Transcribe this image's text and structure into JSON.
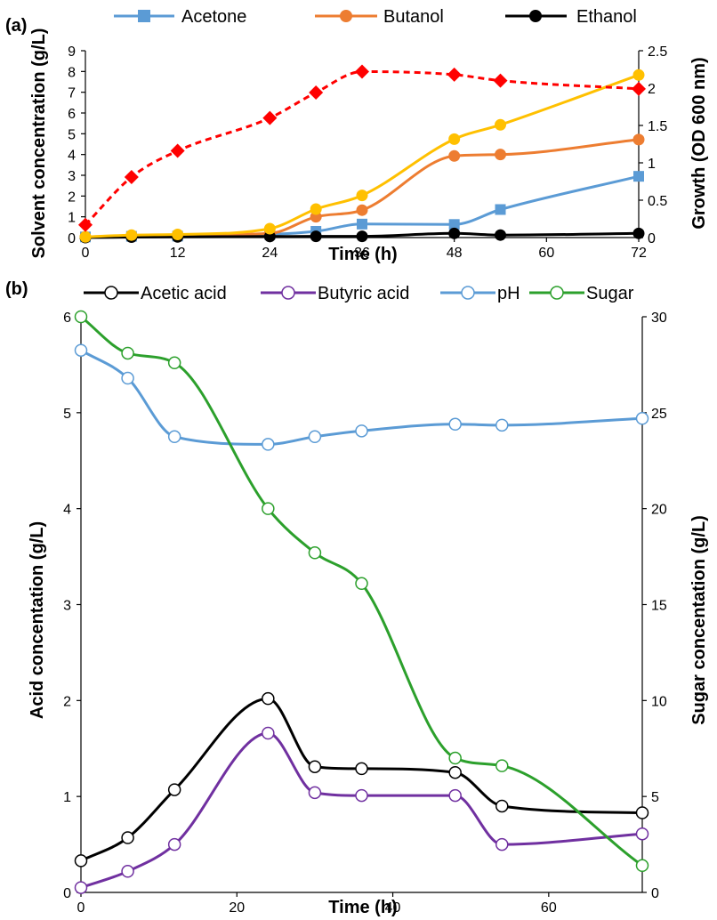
{
  "chart_data": [
    {
      "type": "line",
      "panel_label": "(a)",
      "xlabel": "Time (h)",
      "ylabel_left": "Solvent concentration (g/L)",
      "ylabel_right": "Growth (OD 600 nm)",
      "xlim": [
        0,
        72
      ],
      "x_ticks": [
        0,
        12,
        24,
        36,
        48,
        60,
        72
      ],
      "ylim_left": [
        0,
        9
      ],
      "y_ticks_left": [
        0,
        1,
        2,
        3,
        4,
        5,
        6,
        7,
        8,
        9
      ],
      "ylim_right": [
        0,
        2.5
      ],
      "y_ticks_right": [
        0,
        0.5,
        1,
        1.5,
        2,
        2.5
      ],
      "y_tick_labels_right": [
        "0",
        "0.5",
        "1",
        "1.5",
        "2",
        "2.5"
      ],
      "grid": false,
      "legend_position": "top",
      "series": [
        {
          "name": "Acetone",
          "axis": "left",
          "color": "#5B9BD5",
          "marker": "square",
          "dashed": false,
          "x": [
            0,
            6,
            12,
            24,
            30,
            36,
            48,
            54,
            72
          ],
          "y": [
            0.03,
            0.06,
            0.07,
            0.15,
            0.3,
            0.65,
            0.63,
            1.35,
            2.95
          ]
        },
        {
          "name": "Butanol",
          "axis": "left",
          "color": "#ED7D31",
          "marker": "circle",
          "dashed": false,
          "x": [
            0,
            6,
            12,
            24,
            30,
            36,
            48,
            54,
            72
          ],
          "y": [
            0.03,
            0.1,
            0.12,
            0.2,
            1.0,
            1.32,
            3.93,
            4.0,
            4.72
          ]
        },
        {
          "name": "Ethanol",
          "axis": "left",
          "color": "#000000",
          "marker": "circle",
          "dashed": false,
          "x": [
            0,
            6,
            12,
            24,
            30,
            36,
            48,
            54,
            72
          ],
          "y": [
            0.0,
            0.02,
            0.03,
            0.05,
            0.06,
            0.06,
            0.2,
            0.12,
            0.2
          ]
        },
        {
          "axis": "left",
          "color": "#FFC000",
          "marker": "circle",
          "dashed": false,
          "x": [
            0,
            6,
            12,
            24,
            30,
            36,
            48,
            54,
            72
          ],
          "y": [
            0.03,
            0.12,
            0.15,
            0.43,
            1.37,
            2.03,
            4.74,
            5.43,
            7.83
          ]
        },
        {
          "axis": "right",
          "color": "#FF0000",
          "marker": "diamond",
          "dashed": true,
          "x": [
            0,
            6,
            12,
            24,
            30,
            36,
            48,
            54,
            72
          ],
          "y": [
            0.17,
            0.81,
            1.16,
            1.6,
            1.94,
            2.22,
            2.18,
            2.1,
            1.99
          ]
        }
      ]
    },
    {
      "type": "line",
      "panel_label": "(b)",
      "xlabel": "Time (h)",
      "ylabel_left": "Acid concentation (g/L)",
      "ylabel_right": "Sugar concentation (g/L)",
      "xlim": [
        0,
        72
      ],
      "x_ticks": [
        0,
        20,
        40,
        60
      ],
      "ylim_left": [
        0,
        6
      ],
      "y_ticks_left": [
        0,
        1,
        2,
        3,
        4,
        5,
        6
      ],
      "ylim_right": [
        0,
        30
      ],
      "y_ticks_right": [
        0,
        5,
        10,
        15,
        20,
        25,
        30
      ],
      "y_tick_labels_right": [
        "0",
        "5",
        "10",
        "15",
        "20",
        "25",
        "30"
      ],
      "grid": false,
      "legend_position": "top",
      "series": [
        {
          "name": "Acetic acid",
          "axis": "left",
          "color": "#000000",
          "marker": "open-circle",
          "dashed": false,
          "x": [
            0,
            6,
            12,
            24,
            30,
            36,
            48,
            54,
            72
          ],
          "y": [
            0.33,
            0.57,
            1.07,
            2.02,
            1.31,
            1.29,
            1.25,
            0.9,
            0.83
          ]
        },
        {
          "name": "Butyric acid",
          "axis": "left",
          "color": "#7030A0",
          "marker": "open-circle",
          "dashed": false,
          "x": [
            0,
            6,
            12,
            24,
            30,
            36,
            48,
            54,
            72
          ],
          "y": [
            0.05,
            0.22,
            0.5,
            1.66,
            1.04,
            1.01,
            1.01,
            0.5,
            0.61
          ]
        },
        {
          "name": "pH",
          "axis": "left",
          "color": "#5B9BD5",
          "marker": "open-circle",
          "dashed": false,
          "x": [
            0,
            6,
            12,
            24,
            30,
            36,
            48,
            54,
            72
          ],
          "y": [
            5.65,
            5.36,
            4.75,
            4.67,
            4.75,
            4.81,
            4.88,
            4.87,
            4.94
          ]
        },
        {
          "name": "Sugar",
          "axis": "right",
          "color": "#2CA02C",
          "marker": "open-circle",
          "dashed": false,
          "x": [
            0,
            6,
            12,
            24,
            30,
            36,
            48,
            54,
            72
          ],
          "y": [
            30,
            28.1,
            27.6,
            20.0,
            17.7,
            16.1,
            7.0,
            6.6,
            1.4
          ]
        }
      ]
    }
  ]
}
